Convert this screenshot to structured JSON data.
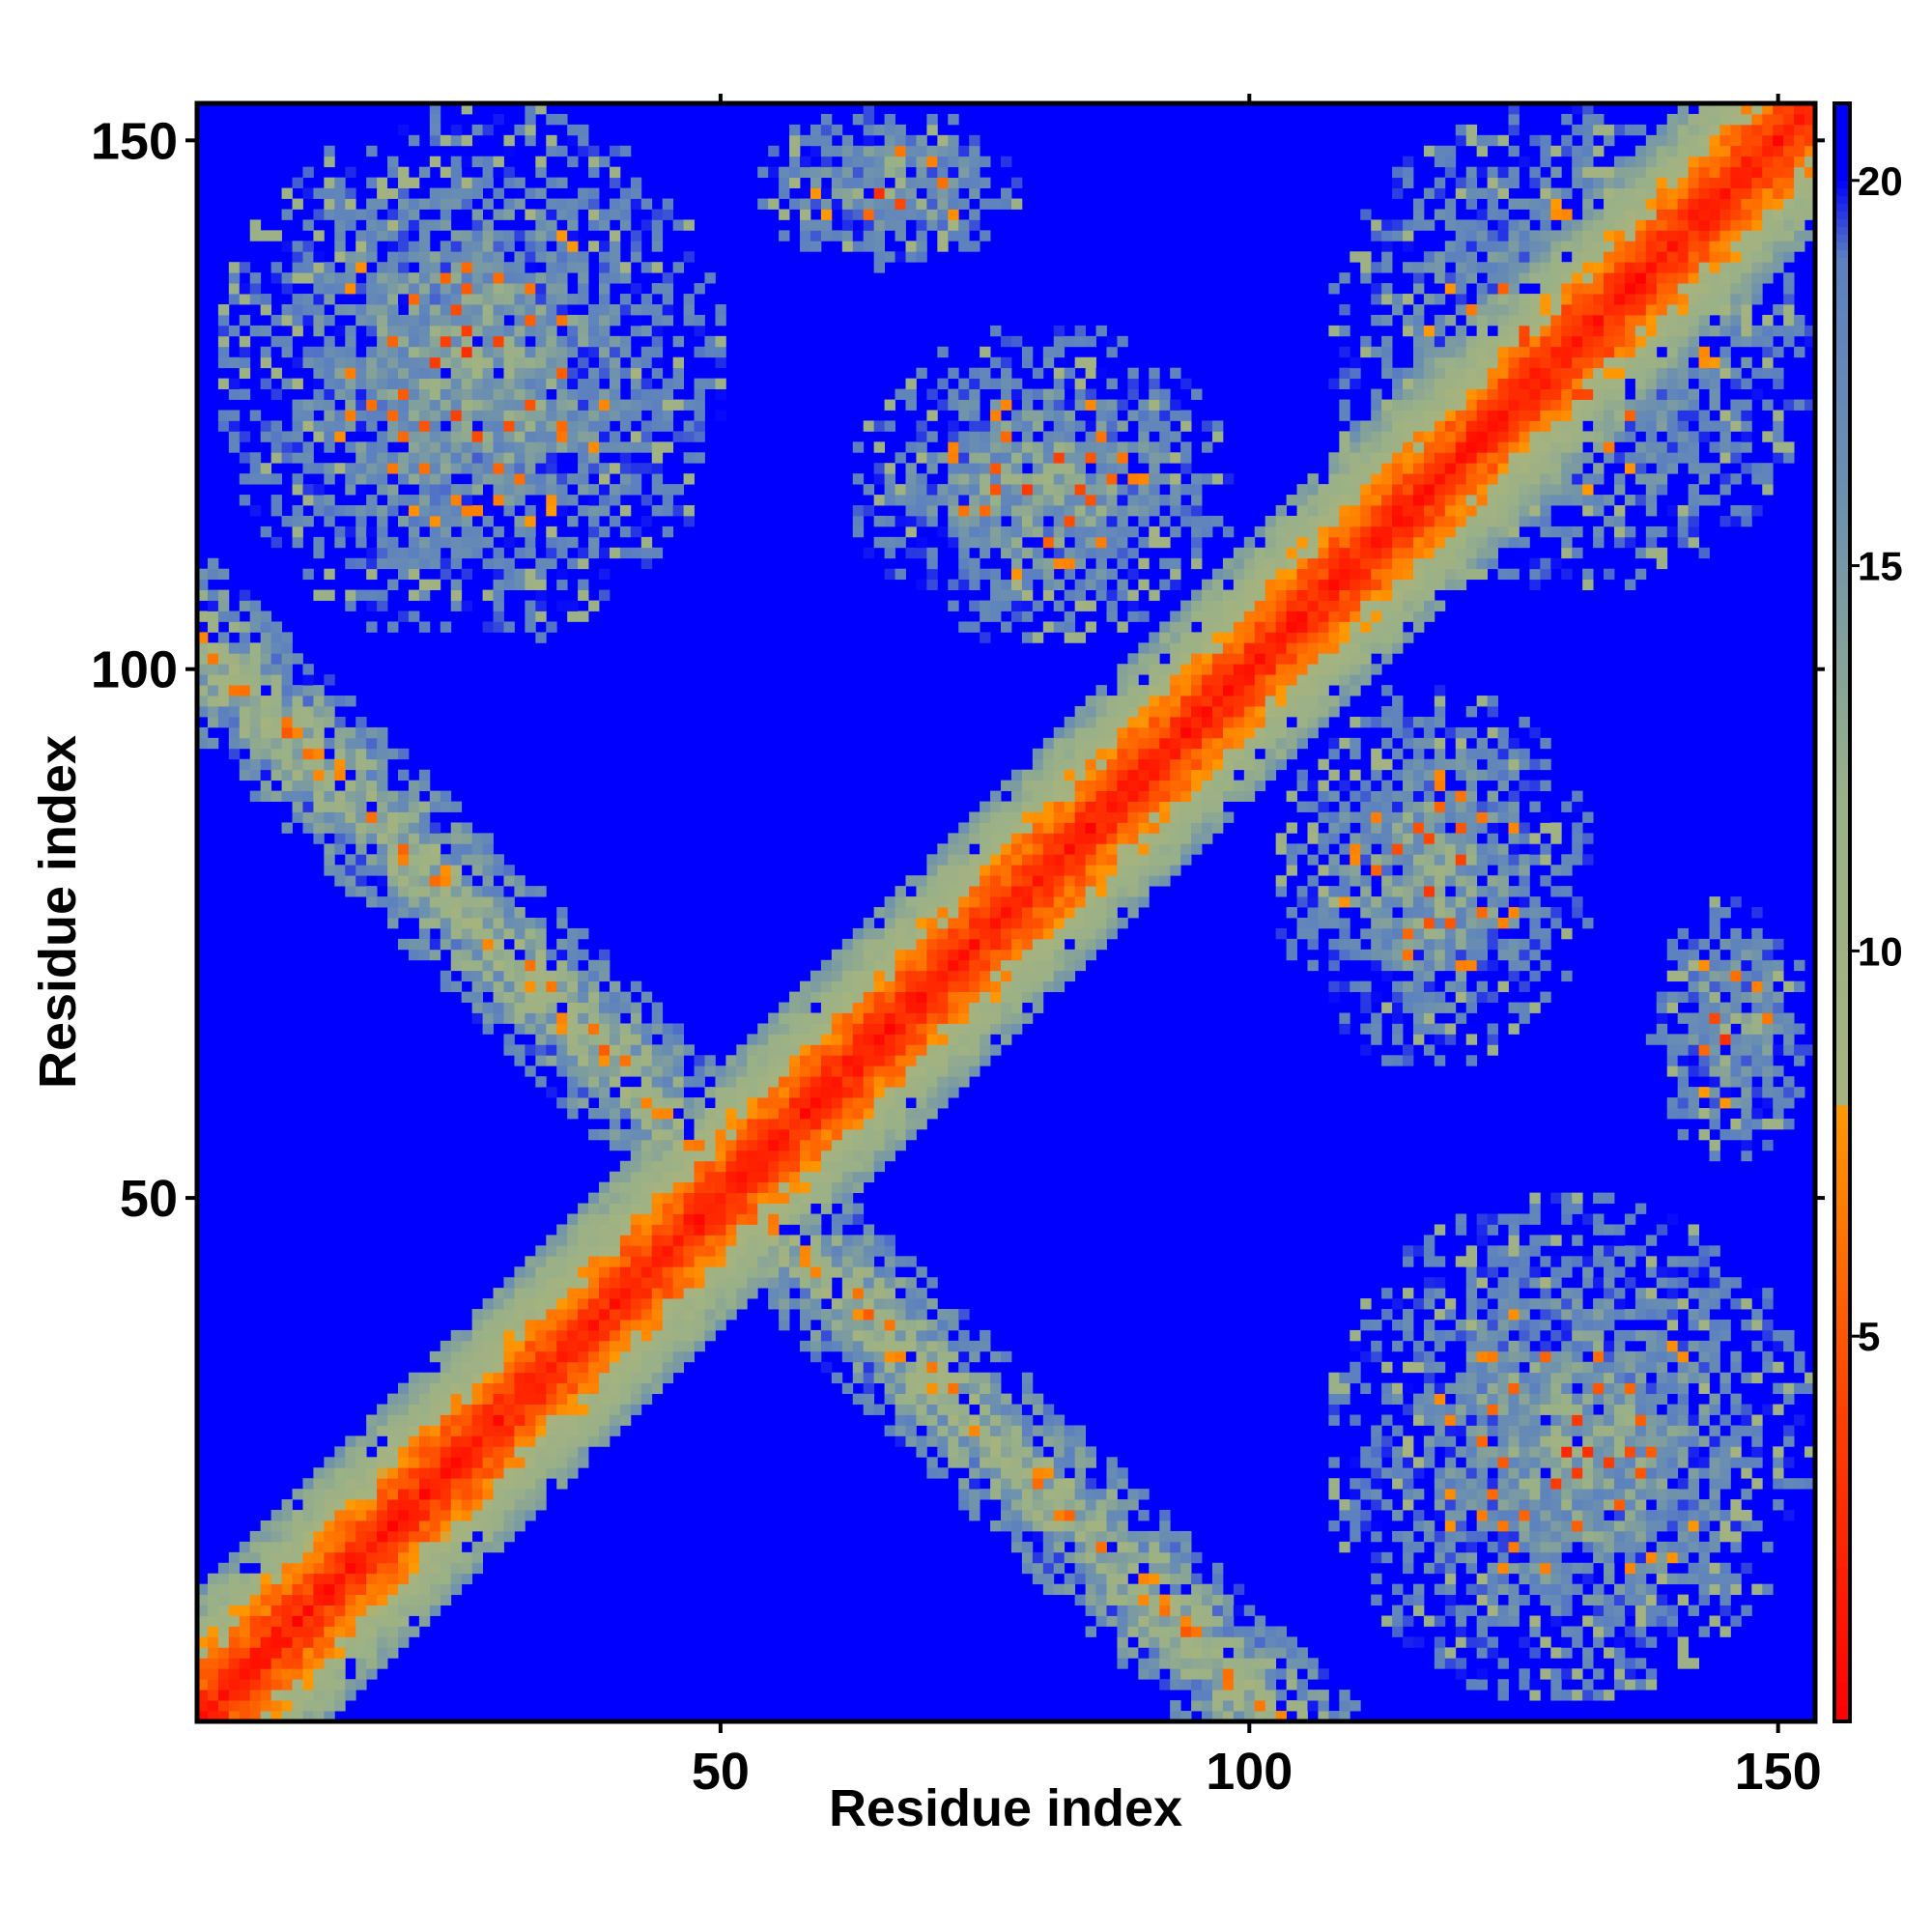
{
  "chart_data": {
    "type": "heatmap",
    "title": "",
    "xlabel": "Residue index",
    "ylabel": "Residue index",
    "xlim": [
      1,
      153
    ],
    "ylim": [
      1,
      153
    ],
    "x_ticks": [
      50,
      100,
      150
    ],
    "y_ticks": [
      50,
      100,
      150
    ],
    "n_residues": 153,
    "colorbar": {
      "range": [
        0,
        21
      ],
      "ticks": [
        5,
        10,
        15,
        20
      ],
      "stops": [
        {
          "value": 0,
          "color": "#ff0000"
        },
        {
          "value": 4,
          "color": "#ff4000"
        },
        {
          "value": 8,
          "color": "#ff9900"
        },
        {
          "value": 8.01,
          "color": "#a6b37f"
        },
        {
          "value": 12,
          "color": "#99b088"
        },
        {
          "value": 16,
          "color": "#6b8fb0"
        },
        {
          "value": 19,
          "color": "#5c80c0"
        },
        {
          "value": 20.01,
          "color": "#0000ff"
        },
        {
          "value": 21,
          "color": "#0000ff"
        }
      ]
    },
    "structure": {
      "description_values": "distance map, symmetric; blue background = distances >= 20",
      "diagonal_band_halfwidth": 12,
      "antidiagonal_band": {
        "sum": 103,
        "halfwidth": 9
      },
      "contact_blocks": [
        {
          "x": [
            3,
            50
          ],
          "y": [
            103,
            153
          ]
        },
        {
          "x": [
            54,
            78
          ],
          "y": [
            138,
            153
          ]
        },
        {
          "x": [
            108,
            153
          ],
          "y": [
            3,
            50
          ]
        },
        {
          "x": [
            138,
            153
          ],
          "y": [
            54,
            78
          ]
        },
        {
          "x": [
            63,
            98
          ],
          "y": [
            103,
            132
          ]
        },
        {
          "x": [
            103,
            132
          ],
          "y": [
            63,
            98
          ]
        },
        {
          "x": [
            108,
            153
          ],
          "y": [
            108,
            153
          ]
        }
      ]
    }
  }
}
